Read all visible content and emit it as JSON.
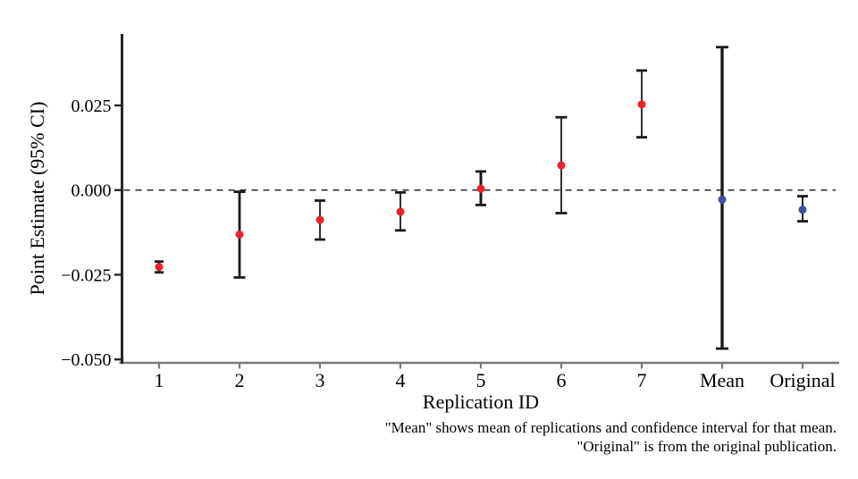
{
  "chart_data": {
    "type": "scatter",
    "subtype": "point-estimates-with-error-bars",
    "title": "",
    "xlabel": "Replication ID",
    "ylabel": "Point Estimate (95% CI)",
    "grid": false,
    "legend": null,
    "ylim": [
      -0.0513,
      0.0464
    ],
    "zero_line": {
      "value": 0,
      "style": "dashed"
    },
    "yticks": [
      {
        "value": 0.025,
        "label": "0.025"
      },
      {
        "value": 0.0,
        "label": "0.000"
      },
      {
        "value": -0.025,
        "label": "−0.025"
      },
      {
        "value": -0.05,
        "label": "−0.050"
      }
    ],
    "categories": [
      "1",
      "2",
      "3",
      "4",
      "5",
      "6",
      "7",
      "Mean",
      "Original"
    ],
    "points": [
      {
        "label": "1",
        "estimate": -0.0227,
        "ci_low": -0.0243,
        "ci_high": -0.0211,
        "color": "#e8232a",
        "lw": 2.8,
        "cap": 5
      },
      {
        "label": "2",
        "estimate": -0.0131,
        "ci_low": -0.0258,
        "ci_high": -0.0005,
        "color": "#e8232a",
        "lw": 2.8,
        "cap": 6.5
      },
      {
        "label": "3",
        "estimate": -0.0088,
        "ci_low": -0.0146,
        "ci_high": -0.0031,
        "color": "#e8232a",
        "lw": 1.8,
        "cap": 6
      },
      {
        "label": "4",
        "estimate": -0.0064,
        "ci_low": -0.0119,
        "ci_high": -0.0007,
        "color": "#e8232a",
        "lw": 1.8,
        "cap": 6
      },
      {
        "label": "5",
        "estimate": 0.0004,
        "ci_low": -0.0044,
        "ci_high": 0.0055,
        "color": "#e8232a",
        "lw": 3.0,
        "cap": 6
      },
      {
        "label": "6",
        "estimate": 0.0073,
        "ci_low": -0.0068,
        "ci_high": 0.0215,
        "color": "#e8232a",
        "lw": 1.8,
        "cap": 6.5
      },
      {
        "label": "7",
        "estimate": 0.0253,
        "ci_low": 0.0156,
        "ci_high": 0.0353,
        "color": "#e8232a",
        "lw": 1.8,
        "cap": 6
      },
      {
        "label": "Mean",
        "estimate": -0.0028,
        "ci_low": -0.0468,
        "ci_high": 0.0422,
        "color": "#3b50a5",
        "lw": 3.4,
        "cap": 7
      },
      {
        "label": "Original",
        "estimate": -0.0058,
        "ci_low": -0.0092,
        "ci_high": -0.0018,
        "color": "#3b50a5",
        "lw": 2.0,
        "cap": 6
      }
    ]
  },
  "caption": {
    "line1": "\"Mean\" shows mean of replications and confidence interval for that mean.",
    "line2": "\"Original\" is from the original publication."
  },
  "colors": {
    "replication_point": "#e8232a",
    "summary_point": "#3b50a5",
    "error_bar": "#1a1a1a",
    "x_axis": "#7a7a7a",
    "y_axis": "#262626",
    "zero_line": "#2f2f2f",
    "text": "#000000",
    "background": "#ffffff"
  }
}
